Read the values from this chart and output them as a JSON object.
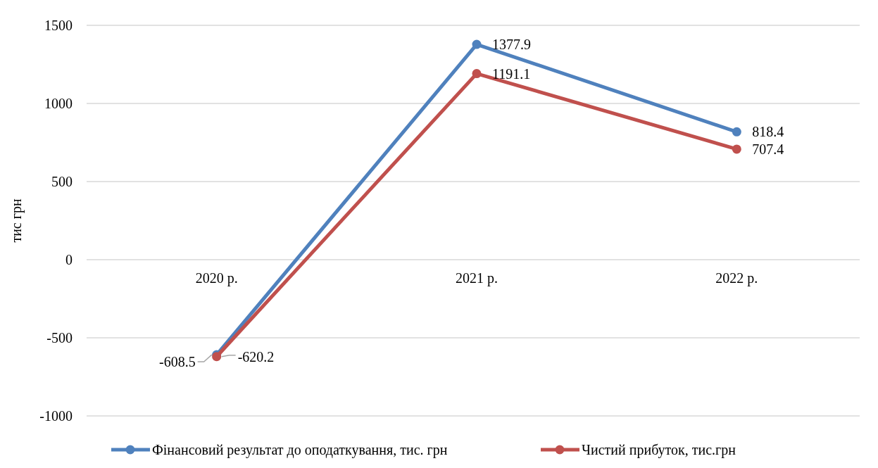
{
  "chart_data": {
    "type": "line",
    "ylabel": "тис грн",
    "categories": [
      "2020 р.",
      "2021 р.",
      "2022 р."
    ],
    "series": [
      {
        "name": "Фінансовий результат до оподаткування, тис. грн",
        "color": "#4f81bd",
        "values": [
          -608.5,
          1377.9,
          818.4
        ]
      },
      {
        "name": "Чистий прибуток, тис.грн",
        "color": "#c0504d",
        "values": [
          -620.2,
          1191.1,
          707.4
        ]
      }
    ],
    "ylim": [
      -1000,
      1500
    ],
    "yticks": [
      -1000,
      -500,
      0,
      500,
      1000,
      1500
    ],
    "grid": "y",
    "legend": "bottom",
    "marker": "circle",
    "data_labels": true
  }
}
